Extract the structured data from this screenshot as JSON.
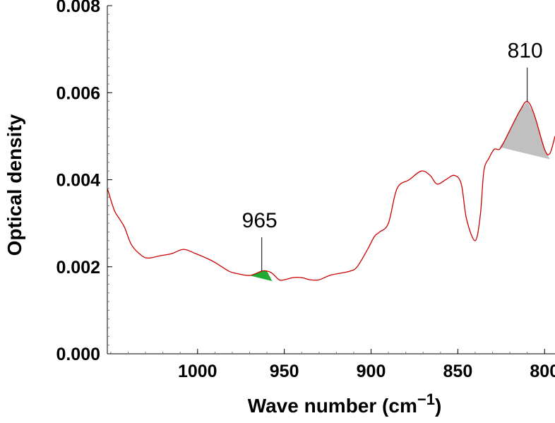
{
  "chart_data": {
    "type": "line",
    "xlabel": "Wave number (cm",
    "xlabel_sup": "−1",
    "xlabel_close": ")",
    "ylabel": "Optical density",
    "xlim": [
      1052,
      794
    ],
    "ylim": [
      0,
      0.008
    ],
    "x_ticks": [
      1000,
      950,
      900,
      850,
      800
    ],
    "x_tick_labels": [
      "1000",
      "950",
      "900",
      "850",
      "800"
    ],
    "y_ticks": [
      0,
      0.002,
      0.004,
      0.006,
      0.008
    ],
    "y_tick_labels": [
      "0.000",
      "0.002",
      "0.004",
      "0.006",
      "0.008"
    ],
    "line_color": "#cc0000",
    "series": [
      {
        "x": [
          1052,
          1048,
          1045,
          1042,
          1038,
          1032,
          1028,
          1022,
          1015,
          1008,
          1001,
          995,
          990,
          982,
          978,
          970,
          963,
          960,
          957,
          953,
          950,
          945,
          940,
          935,
          930,
          924,
          918,
          912,
          908,
          902,
          898,
          895,
          890,
          885,
          878,
          871,
          866,
          862,
          857,
          852,
          848,
          845,
          840,
          837,
          835,
          832,
          829,
          826,
          823,
          818,
          814,
          810,
          806,
          800,
          797,
          794
        ],
        "y": [
          0.0038,
          0.0033,
          0.0031,
          0.0029,
          0.0025,
          0.00225,
          0.0022,
          0.00225,
          0.0023,
          0.0024,
          0.0023,
          0.0022,
          0.0021,
          0.0019,
          0.00185,
          0.0018,
          0.0019,
          0.0019,
          0.00185,
          0.0017,
          0.0017,
          0.00175,
          0.00175,
          0.0017,
          0.0017,
          0.0018,
          0.00185,
          0.0019,
          0.002,
          0.0024,
          0.0027,
          0.0028,
          0.003,
          0.0038,
          0.004,
          0.0042,
          0.0041,
          0.0039,
          0.004,
          0.0041,
          0.0039,
          0.0031,
          0.0026,
          0.0032,
          0.0042,
          0.0045,
          0.0047,
          0.0047,
          0.0049,
          0.0053,
          0.0056,
          0.0058,
          0.0055,
          0.0047,
          0.0046,
          0.005
        ]
      }
    ],
    "peaks": [
      {
        "label": "965",
        "x": 963,
        "base_from": [
          972,
          0.00182
        ],
        "base_to": [
          957,
          0.00167
        ],
        "color": "#22aa33"
      },
      {
        "label": "810",
        "x": 810,
        "base_from": [
          826,
          0.00475
        ],
        "base_to": [
          797,
          0.00447
        ],
        "color": "#c0c0c0"
      }
    ],
    "grid": false,
    "legend": "none"
  }
}
